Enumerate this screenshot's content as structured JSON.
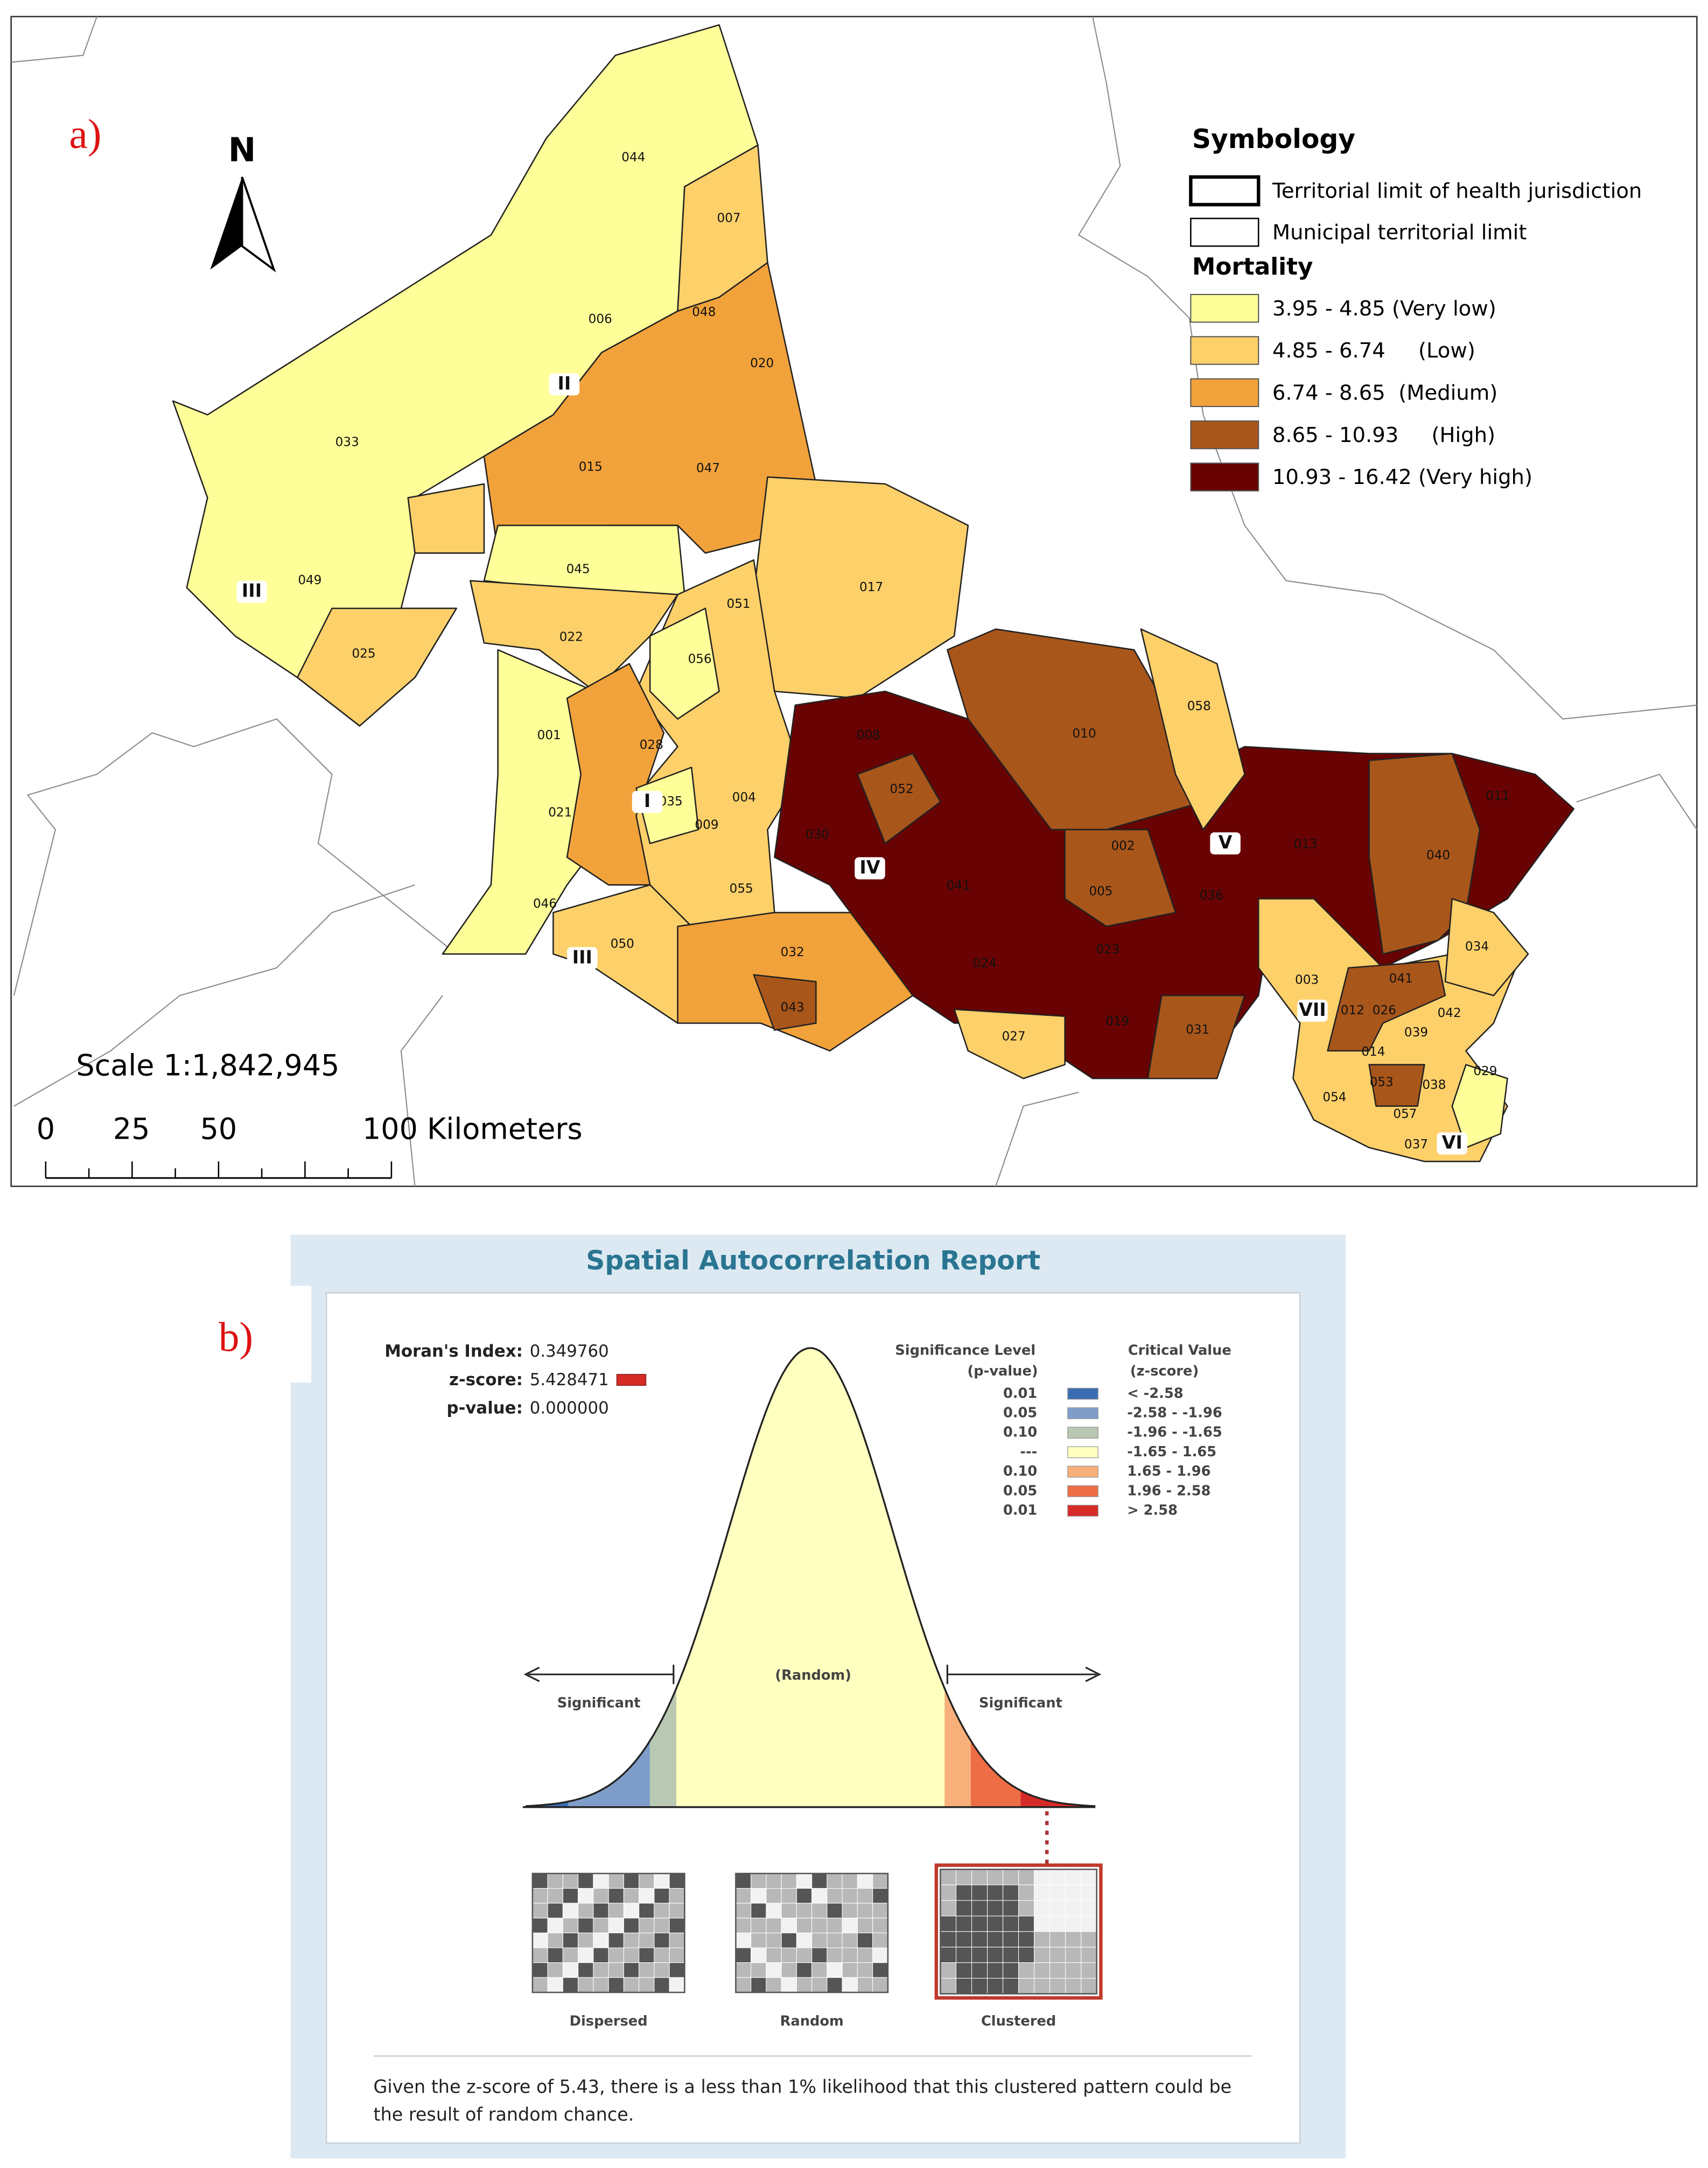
{
  "panel_a": {
    "tag": "a)",
    "north": "N",
    "legend": {
      "title": "Symbology",
      "boundaries": [
        "Territorial limit of health jurisdiction",
        "Municipal territorial limit"
      ],
      "mortality_title": "Mortality",
      "classes": [
        {
          "label": "3.95 - 4.85 (Very low)",
          "color": "#ffff99"
        },
        {
          "label": "4.85 - 6.74     (Low)",
          "color": "#fdd06a"
        },
        {
          "label": "6.74 - 8.65  (Medium)",
          "color": "#f2a23a"
        },
        {
          "label": "8.65 - 10.93     (High)",
          "color": "#a9561b"
        },
        {
          "label": "10.93 - 16.42 (Very high)",
          "color": "#690303"
        }
      ]
    },
    "scale": "Scale 1:1,842,945",
    "scalebar_labels": [
      "0",
      "25",
      "50",
      "100 Kilometers"
    ],
    "municipalities": [
      "044",
      "007",
      "006",
      "048",
      "020",
      "033",
      "015",
      "047",
      "045",
      "049",
      "051",
      "017",
      "025",
      "022",
      "056",
      "058",
      "010",
      "008",
      "001",
      "028",
      "052",
      "035",
      "004",
      "021",
      "009",
      "030",
      "002",
      "013",
      "011",
      "040",
      "041",
      "005",
      "036",
      "055",
      "046",
      "050",
      "032",
      "023",
      "034",
      "024",
      "003",
      "041",
      "043",
      "012",
      "026",
      "042",
      "019",
      "031",
      "039",
      "027",
      "014",
      "029",
      "053",
      "038",
      "054",
      "057",
      "037"
    ],
    "jurisdictions": [
      "II",
      "III",
      "I",
      "IV",
      "V",
      "III",
      "VII",
      "VI"
    ]
  },
  "panel_b": {
    "tag": "b)",
    "title": "Spatial Autocorrelation Report",
    "stats": [
      {
        "label": "Moran's Index:",
        "value": "0.349760"
      },
      {
        "label": "z-score:",
        "value": "5.428471"
      },
      {
        "label": "p-value:",
        "value": "0.000000"
      }
    ],
    "significance_header": [
      "Significance Level",
      "(p-value)"
    ],
    "critical_header": [
      "Critical Value",
      "(z-score)"
    ],
    "levels": [
      {
        "p": "0.01",
        "z": "< -2.58",
        "color": "#3b6db3"
      },
      {
        "p": "0.05",
        "z": "-2.58 - -1.96",
        "color": "#7f9dc9"
      },
      {
        "p": "0.10",
        "z": "-1.96 - -1.65",
        "color": "#b9c8b2"
      },
      {
        "p": "---",
        "z": "-1.65 - 1.65",
        "color": "#ffffc0"
      },
      {
        "p": "0.10",
        "z": "1.65 - 1.96",
        "color": "#f7b07a"
      },
      {
        "p": "0.05",
        "z": "1.96 - 2.58",
        "color": "#ee6d45"
      },
      {
        "p": "0.01",
        "z": "> 2.58",
        "color": "#d62a27"
      }
    ],
    "curve_labels": {
      "random": "(Random)",
      "significant_left": "Significant",
      "significant_right": "Significant"
    },
    "patterns": [
      "Dispersed",
      "Random",
      "Clustered"
    ],
    "conclusion": [
      "Given the z-score of 5.43, there is a less than 1% likelihood that this clustered pattern could be",
      "the result of random chance."
    ]
  }
}
